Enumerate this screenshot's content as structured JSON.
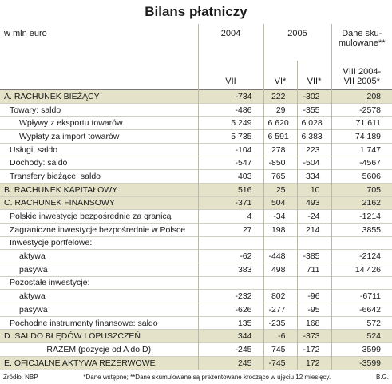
{
  "title": "Bilans płatniczy",
  "header": {
    "unit": "w mln euro",
    "years": [
      "2004",
      "2005"
    ],
    "cumulative": [
      "Dane sku-",
      "mulowane**"
    ],
    "months": [
      "VII",
      "VI*",
      "VII*"
    ],
    "period": [
      "VIII 2004-",
      "VII 2005*"
    ]
  },
  "table": {
    "rows": [
      {
        "label": "A. RACHUNEK BIEŻĄCY",
        "values": [
          "-734",
          "222",
          "-302",
          "208"
        ]
      },
      {
        "label": "Towary: saldo",
        "values": [
          "-486",
          "29",
          "-355",
          "-2578"
        ]
      },
      {
        "label": "Wpływy z eksportu towarów",
        "values": [
          "5 249",
          "6 620",
          "6 028",
          "71 611"
        ]
      },
      {
        "label": "Wypłaty za import towarów",
        "values": [
          "5 735",
          "6 591",
          "6 383",
          "74 189"
        ]
      },
      {
        "label": "Usługi: saldo",
        "values": [
          "-104",
          "278",
          "223",
          "1 747"
        ]
      },
      {
        "label": "Dochody: saldo",
        "values": [
          "-547",
          "-850",
          "-504",
          "-4567"
        ]
      },
      {
        "label": "Transfery bieżące: saldo",
        "values": [
          "403",
          "765",
          "334",
          "5606"
        ]
      },
      {
        "label": "B. RACHUNEK KAPITAŁOWY",
        "values": [
          "516",
          "25",
          "10",
          "705"
        ]
      },
      {
        "label": "C. RACHUNEK FINANSOWY",
        "values": [
          "-371",
          "504",
          "493",
          "2162"
        ]
      },
      {
        "label": "Polskie inwestycje bezpośrednie za granicą",
        "values": [
          "4",
          "-34",
          "-24",
          "-1214"
        ]
      },
      {
        "label": "Zagraniczne inwestycje bezpośrednie w Polsce",
        "values": [
          "27",
          "198",
          "214",
          "3855"
        ]
      },
      {
        "label": "Inwestycje portfelowe:",
        "values": []
      },
      {
        "label": "aktywa",
        "values": [
          "-62",
          "-448",
          "-385",
          "-2124"
        ]
      },
      {
        "label": "pasywa",
        "values": [
          "383",
          "498",
          "711",
          "14 426"
        ]
      },
      {
        "label": "Pozostałe inwestycje:",
        "values": []
      },
      {
        "label": "aktywa",
        "values": [
          "-232",
          "802",
          "-96",
          "-6711"
        ]
      },
      {
        "label": "pasywa",
        "values": [
          "-626",
          "-277",
          "-95",
          "-6642"
        ]
      },
      {
        "label": "Pochodne instrumenty finansowe: saldo",
        "values": [
          "135",
          "-235",
          "168",
          "572"
        ]
      },
      {
        "label": "D. SALDO BŁĘDÓW I OPUSZCZEŃ",
        "values": [
          "344",
          "-6",
          "-373",
          "524"
        ]
      },
      {
        "label": "RAZEM (pozycje od A do D)",
        "values": [
          "-245",
          "745",
          "-172",
          "3599"
        ]
      },
      {
        "label": "E. OFICJALNE AKTYWA REZERWOWE",
        "values": [
          "245",
          "-745",
          "172",
          "-3599"
        ]
      }
    ]
  },
  "footer": {
    "source": "Źródło: NBP",
    "note": "*Dane wstępne; **Dane skumulowane są prezentowane krocząco w ujęciu 12 miesięcy.",
    "author": "B.G."
  }
}
